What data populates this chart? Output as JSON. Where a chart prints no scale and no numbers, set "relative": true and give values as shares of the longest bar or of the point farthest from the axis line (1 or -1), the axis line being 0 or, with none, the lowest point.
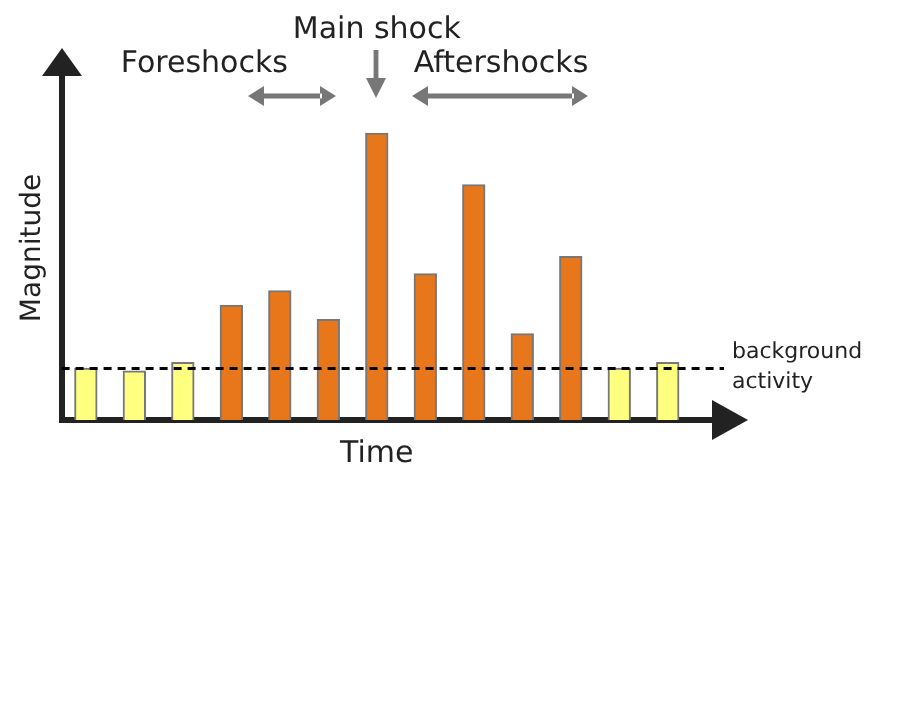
{
  "chart_data": {
    "type": "bar",
    "relative": true,
    "xlabel": "Time",
    "ylabel": "Magnitude",
    "categories": [
      null,
      null,
      null,
      null,
      null,
      null,
      null,
      null,
      null,
      null,
      null,
      null,
      null
    ],
    "values": [
      0.18,
      0.17,
      0.2,
      0.4,
      0.45,
      0.35,
      1,
      0.51,
      0.82,
      0.3,
      0.57,
      0.18,
      0.2
    ],
    "colors": [
      "#ffff80",
      "#ffff80",
      "#ffff80",
      "#e8761a",
      "#e8761a",
      "#e8761a",
      "#e8761a",
      "#e8761a",
      "#e8761a",
      "#e8761a",
      "#e8761a",
      "#ffff80",
      "#ffff80"
    ],
    "ref_lines": [
      {
        "axis": "y",
        "value": 0.18,
        "label": "background activity",
        "color": "#000000",
        "line_style": "dashed"
      }
    ],
    "annotations": [
      "Foreshocks",
      "Main shock",
      "Aftershocks"
    ],
    "grid": false,
    "legend": false
  }
}
